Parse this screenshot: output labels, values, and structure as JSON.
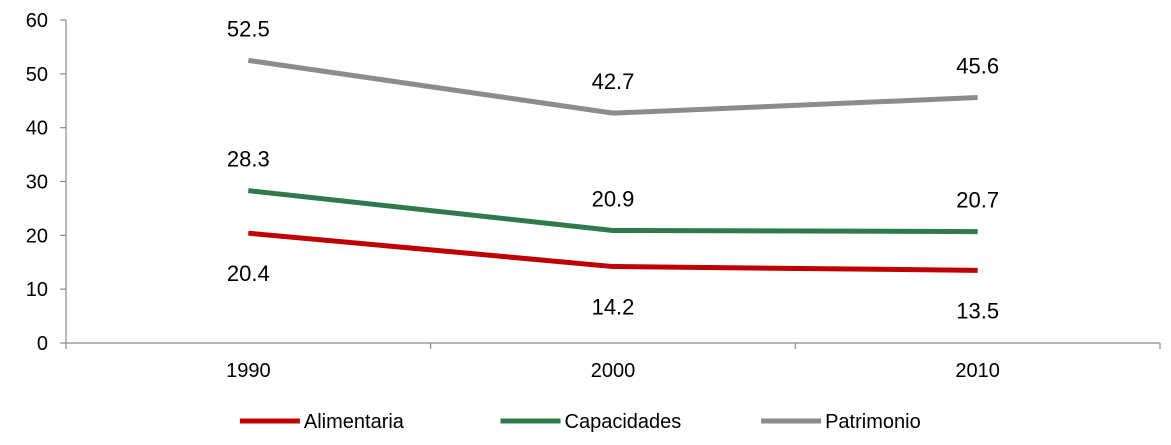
{
  "chart_data": {
    "type": "line",
    "title": "",
    "xlabel": "",
    "ylabel": "",
    "categories": [
      "1990",
      "2000",
      "2010"
    ],
    "ylim": [
      0,
      60
    ],
    "yticks": [
      0,
      10,
      20,
      30,
      40,
      50,
      60
    ],
    "ytick_labels": [
      "0",
      "10",
      "20",
      "30",
      "40",
      "50",
      "60"
    ],
    "grid": false,
    "legend_position": "bottom",
    "series": [
      {
        "name": "Alimentaria",
        "color": "#c00000",
        "values": [
          20.4,
          14.2,
          13.5
        ],
        "labels": [
          "20.4",
          "14.2",
          "13.5"
        ],
        "label_side": "below"
      },
      {
        "name": "Capacidades",
        "color": "#2e7a4a",
        "values": [
          28.3,
          20.9,
          20.7
        ],
        "labels": [
          "28.3",
          "20.9",
          "20.7"
        ],
        "label_side": "above"
      },
      {
        "name": "Patrimonio",
        "color": "#8c8c8c",
        "values": [
          52.5,
          42.7,
          45.6
        ],
        "labels": [
          "52.5",
          "42.7",
          "45.6"
        ],
        "label_side": "above"
      }
    ]
  }
}
